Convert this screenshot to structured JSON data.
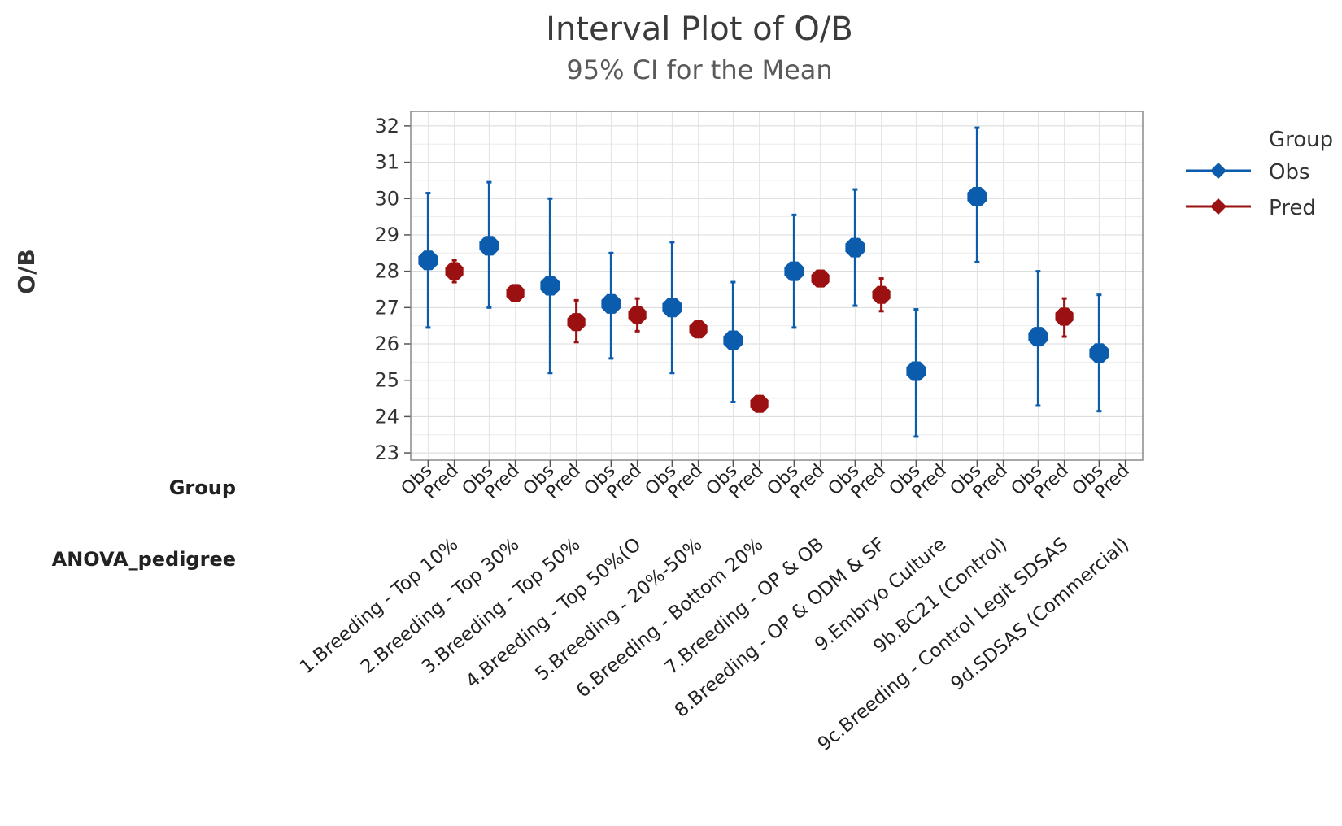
{
  "chart_data": {
    "type": "interval",
    "title": "Interval Plot of O/B",
    "subtitle": "95% CI for the Mean",
    "ylabel": "O/B",
    "ylim": [
      22.8,
      32.4
    ],
    "yticks": [
      23,
      24,
      25,
      26,
      27,
      28,
      29,
      30,
      31,
      32
    ],
    "grid": true,
    "row_labels": {
      "group": "Group",
      "pedigree": "ANOVA_pedigree"
    },
    "legend": {
      "title": "Group",
      "placement": "right",
      "items": [
        {
          "name": "Obs",
          "color": "#0b5cad"
        },
        {
          "name": "Pred",
          "color": "#9b1010"
        }
      ]
    },
    "group_labels": [
      "Obs",
      "Pred"
    ],
    "categories": [
      "1.Breeding - Top 10%",
      "2.Breeding - Top 30%",
      "3.Breeding - Top 50%",
      "4.Breeding - Top 50%(O",
      "5.Breeding - 20%-50%",
      "6.Breeding - Bottom 20%",
      "7.Breeding - OP & OB",
      "8.Breeding - OP & ODM & SF",
      "9.Embryo Culture",
      "9b.BC21 (Control)",
      "9c.Breeding - Control Legit SDSAS",
      "9d.SDSAS (Commercial)"
    ],
    "series": [
      {
        "name": "Obs",
        "color": "#0b5cad",
        "mean": [
          28.3,
          28.7,
          27.6,
          27.1,
          27.0,
          26.1,
          28.0,
          28.65,
          25.25,
          30.05,
          26.2,
          25.75
        ],
        "lower": [
          26.45,
          27.0,
          25.2,
          25.6,
          25.2,
          24.4,
          26.45,
          27.05,
          23.45,
          28.25,
          24.3,
          24.15
        ],
        "upper": [
          30.15,
          30.45,
          30.0,
          28.5,
          28.8,
          27.7,
          29.55,
          30.25,
          26.95,
          31.95,
          28.0,
          27.35
        ]
      },
      {
        "name": "Pred",
        "color": "#9b1010",
        "mean": [
          28.0,
          27.4,
          26.6,
          26.8,
          26.4,
          24.35,
          27.8,
          27.35,
          null,
          null,
          26.75,
          null
        ],
        "lower": [
          27.7,
          27.2,
          26.05,
          26.35,
          26.2,
          24.2,
          27.65,
          26.9,
          null,
          null,
          26.2,
          null
        ],
        "upper": [
          28.3,
          27.6,
          27.2,
          27.25,
          26.55,
          24.5,
          27.95,
          27.8,
          null,
          null,
          27.25,
          null
        ]
      }
    ]
  }
}
